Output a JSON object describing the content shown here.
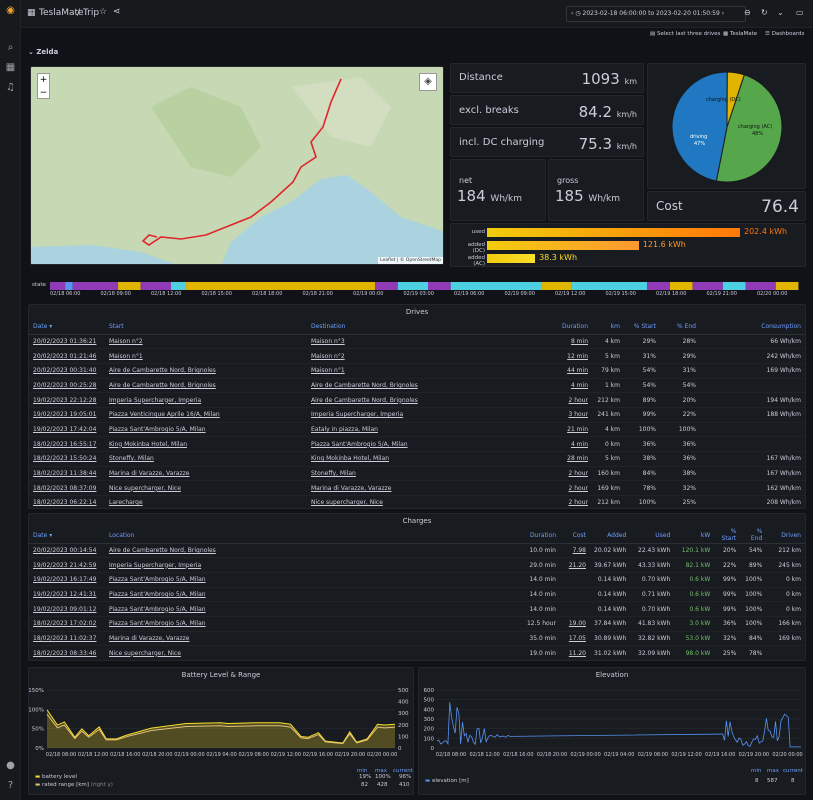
{
  "app": {
    "breadcrumb_root": "TeslaMate",
    "breadcrumb_sep": "/",
    "title": "Trip",
    "time_range": "2023-02-18 06:00:00 to 2023-02-20 01:50:59"
  },
  "links": {
    "select": "Select last three drives",
    "teslamate": "TeslaMate",
    "dashboards": "Dashboards"
  },
  "row_title": "Zelda",
  "map": {
    "zoom_in": "+",
    "zoom_out": "−",
    "attribution": "Leaflet | © OpenStreetMap"
  },
  "stats": {
    "distance": {
      "label": "Distance",
      "value": "1093",
      "unit": "km"
    },
    "excl": {
      "label": "excl. breaks",
      "value": "84.2",
      "unit": "km/h"
    },
    "incl": {
      "label": "incl. DC charging",
      "value": "75.3",
      "unit": "km/h"
    },
    "net": {
      "label": "net",
      "value": "184",
      "unit": "Wh/km"
    },
    "gross": {
      "label": "gross",
      "value": "185",
      "unit": "Wh/km"
    },
    "cost": {
      "label": "Cost",
      "value": "76.4"
    }
  },
  "pie": {
    "slices": [
      {
        "name": "charging (AC)",
        "pct": 48,
        "color": "#56a64b"
      },
      {
        "name": "driving",
        "pct": 47,
        "color": "#1f78c1"
      },
      {
        "name": "charging (DC)",
        "pct": 5,
        "color": "#e0b400"
      }
    ],
    "labels": {
      "ac": "charging (AC)",
      "ac_pct": "48%",
      "driving": "driving",
      "driving_pct": "47%",
      "dc": "charging (DC)"
    }
  },
  "energy": {
    "bars": [
      {
        "label": "used",
        "value": "202.4",
        "unit": "kWh",
        "fraction": 1.0
      },
      {
        "label": "added (DC)",
        "value": "121.6",
        "unit": "kWh",
        "fraction": 0.6
      },
      {
        "label": "added (AC)",
        "value": "38.3",
        "unit": "kWh",
        "fraction": 0.19
      }
    ]
  },
  "timeline": {
    "label": "state",
    "ticks": [
      "02/18 06:00",
      "02/18 09:00",
      "02/18 12:00",
      "02/18 15:00",
      "02/18 18:00",
      "02/18 21:00",
      "02/19 00:00",
      "02/19 03:00",
      "02/19 06:00",
      "02/19 09:00",
      "02/19 12:00",
      "02/19 15:00",
      "02/19 18:00",
      "02/19 21:00",
      "02/20 00:00"
    ]
  },
  "drives": {
    "title": "Drives",
    "headers": [
      "Date ▾",
      "Start",
      "Destination",
      "Duration",
      "km",
      "% Start",
      "% End",
      "Consumption"
    ],
    "rows": [
      [
        "20/02/2023 01:36:21",
        "Maison n°2",
        "Maison n°3",
        "8 min",
        "4 km",
        "29%",
        "28%",
        "66 Wh/km"
      ],
      [
        "20/02/2023 01:21:46",
        "Maison n°1",
        "Maison n°2",
        "12 min",
        "5 km",
        "31%",
        "29%",
        "242 Wh/km"
      ],
      [
        "20/02/2023 00:31:40",
        "Aire de Cambarette Nord, Brignoles",
        "Maison n°1",
        "44 min",
        "79 km",
        "54%",
        "31%",
        "169 Wh/km"
      ],
      [
        "20/02/2023 00:25:28",
        "Aire de Cambarette Nord, Brignoles",
        "Aire de Cambarette Nord, Brignoles",
        "4 min",
        "1 km",
        "54%",
        "54%",
        ""
      ],
      [
        "19/02/2023 22:12:28",
        "Imperia Supercharger, Imperia",
        "Aire de Cambarette Nord, Brignoles",
        "2 hour",
        "212 km",
        "89%",
        "20%",
        "194 Wh/km"
      ],
      [
        "19/02/2023 19:05:01",
        "Piazza Venticinque Aprile 16/A, Milan",
        "Imperia Supercharger, Imperia",
        "3 hour",
        "241 km",
        "99%",
        "22%",
        "188 Wh/km"
      ],
      [
        "19/02/2023 17:42:04",
        "Piazza Sant'Ambrogio 5/A, Milan",
        "Eataly in piazza, Milan",
        "21 min",
        "4 km",
        "100%",
        "100%",
        ""
      ],
      [
        "18/02/2023 16:55:17",
        "King Mokinba Hotel, Milan",
        "Piazza Sant'Ambrogio 5/A, Milan",
        "4 min",
        "0 km",
        "36%",
        "36%",
        ""
      ],
      [
        "18/02/2023 15:50:24",
        "Stoneffy, Milan",
        "King Mokinba Hotel, Milan",
        "28 min",
        "5 km",
        "38%",
        "36%",
        "167 Wh/km"
      ],
      [
        "18/02/2023 11:38:44",
        "Marina di Varazze, Varazze",
        "Stoneffy, Milan",
        "2 hour",
        "160 km",
        "84%",
        "38%",
        "167 Wh/km"
      ],
      [
        "18/02/2023 08:37:09",
        "Nice supercharger, Nice",
        "Marina di Varazze, Varazze",
        "2 hour",
        "169 km",
        "78%",
        "32%",
        "162 Wh/km"
      ],
      [
        "18/02/2023 06:22:14",
        "Larecharge",
        "Nice supercharger, Nice",
        "2 hour",
        "212 km",
        "100%",
        "25%",
        "208 Wh/km"
      ]
    ]
  },
  "charges": {
    "title": "Charges",
    "headers": [
      "Date ▾",
      "Location",
      "Duration",
      "Cost",
      "Added",
      "Used",
      "kW",
      "% Start",
      "% End",
      "Driven"
    ],
    "rows": [
      [
        "20/02/2023 00:14:54",
        "Aire de Cambarette Nord, Brignoles",
        "10.0 min",
        "7.98",
        "20.02 kWh",
        "22.43 kWh",
        "120.1 kW",
        "20%",
        "54%",
        "212 km"
      ],
      [
        "19/02/2023 21:42:59",
        "Imperia Supercharger, Imperia",
        "29.0 min",
        "21.20",
        "39.67 kWh",
        "43.33 kWh",
        "82.1 kW",
        "22%",
        "89%",
        "245 km"
      ],
      [
        "19/02/2023 16:17:49",
        "Piazza Sant'Ambrogio 5/A, Milan",
        "14.0 min",
        "",
        "0.14 kWh",
        "0.70 kWh",
        "0.6 kW",
        "99%",
        "100%",
        "0 km"
      ],
      [
        "19/02/2023 12:41:31",
        "Piazza Sant'Ambrogio 5/A, Milan",
        "14.0 min",
        "",
        "0.14 kWh",
        "0.71 kWh",
        "0.6 kW",
        "99%",
        "100%",
        "0 km"
      ],
      [
        "19/02/2023 09:01:12",
        "Piazza Sant'Ambrogio 5/A, Milan",
        "14.0 min",
        "",
        "0.14 kWh",
        "0.70 kWh",
        "0.6 kW",
        "99%",
        "100%",
        "0 km"
      ],
      [
        "18/02/2023 17:02:02",
        "Piazza Sant'Ambrogio 5/A, Milan",
        "12.5 hour",
        "19.00",
        "37.84 kWh",
        "41.83 kWh",
        "3.0 kW",
        "36%",
        "100%",
        "166 km"
      ],
      [
        "18/02/2023 11:02:37",
        "Marina di Varazze, Varazze",
        "35.0 min",
        "17.05",
        "30.89 kWh",
        "32.82 kWh",
        "53.0 kW",
        "32%",
        "84%",
        "169 km"
      ],
      [
        "18/02/2023 08:33:46",
        "Nice supercharger, Nice",
        "19.0 min",
        "11.20",
        "31.02 kWh",
        "32.09 kWh",
        "98.0 kW",
        "25%",
        "78%",
        ""
      ]
    ]
  },
  "battery": {
    "title": "Battery Level & Range",
    "yleft": [
      "150%",
      "100%",
      "50%",
      "0%"
    ],
    "yright": [
      "500",
      "400",
      "300",
      "200",
      "100",
      "0"
    ],
    "xticks": [
      "02/18 08:00",
      "02/18 12:00",
      "02/18 16:00",
      "02/18 20:00",
      "02/19 00:00",
      "02/19 04:00",
      "02/19 08:00",
      "02/19 12:00",
      "02/19 16:00",
      "02/19 20:00",
      "02/20 00:00"
    ],
    "legend": {
      "min": "min",
      "max": "max",
      "current": "current",
      "s1": "battery level",
      "s1_min": "19%",
      "s1_max": "100%",
      "s1_cur": "96%",
      "s2": "rated range [km]",
      "s2_suffix": "(right y)",
      "s2_min": "82",
      "s2_max": "428",
      "s2_cur": "410"
    }
  },
  "elevation": {
    "title": "Elevation",
    "y": [
      "600",
      "500",
      "400",
      "300",
      "200",
      "100",
      "0"
    ],
    "xticks": [
      "02/18 08:00",
      "02/18 12:00",
      "02/18 16:00",
      "02/18 20:00",
      "02/19 00:00",
      "02/19 04:00",
      "02/19 08:00",
      "02/19 12:00",
      "02/19 16:00",
      "02/19 20:00",
      "02/20 00:00"
    ],
    "legend": {
      "min": "min",
      "max": "max",
      "current": "current",
      "s1": "elevation [m]",
      "s1_min": "8",
      "s1_max": "587",
      "s1_cur": "8"
    }
  },
  "colors": {
    "accent": "#6e9fff",
    "used": "#ff780a",
    "dc": "#ff9830",
    "ac": "#fade2a",
    "battery": "#fade2a",
    "range": "#e0c27a",
    "elevation": "#5794f2"
  }
}
